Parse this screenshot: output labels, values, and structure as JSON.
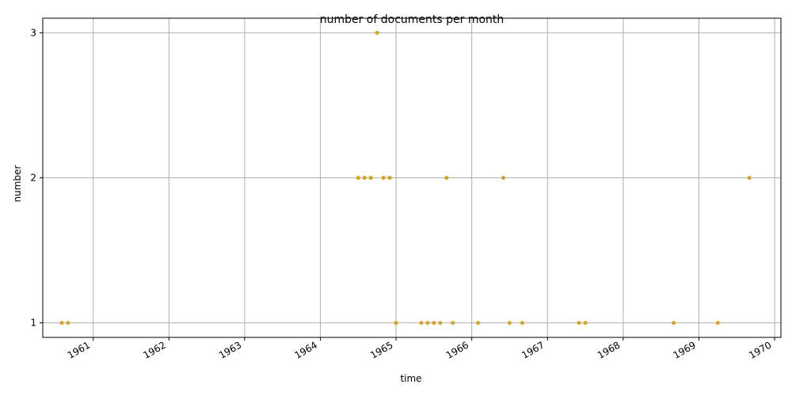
{
  "chart_data": {
    "type": "scatter",
    "title": "number of documents per month",
    "xlabel": "time",
    "ylabel": "number",
    "x_ticks": [
      "1961",
      "1962",
      "1963",
      "1964",
      "1965",
      "1966",
      "1967",
      "1968",
      "1969",
      "1970"
    ],
    "y_ticks": [
      "1",
      "2",
      "3"
    ],
    "xlim": [
      "1960-05-01",
      "1970-02-01"
    ],
    "ylim": [
      0.9,
      3.1
    ],
    "grid": true,
    "marker_color": "#d4a72c",
    "series": [
      {
        "points": [
          {
            "x": "1960-08",
            "y": 1
          },
          {
            "x": "1960-09",
            "y": 1
          },
          {
            "x": "1964-07",
            "y": 2
          },
          {
            "x": "1964-08",
            "y": 2
          },
          {
            "x": "1964-09",
            "y": 2
          },
          {
            "x": "1964-10",
            "y": 3
          },
          {
            "x": "1964-11",
            "y": 2
          },
          {
            "x": "1964-12",
            "y": 2
          },
          {
            "x": "1965-01",
            "y": 1
          },
          {
            "x": "1965-05",
            "y": 1
          },
          {
            "x": "1965-06",
            "y": 1
          },
          {
            "x": "1965-07",
            "y": 1
          },
          {
            "x": "1965-08",
            "y": 1
          },
          {
            "x": "1965-09",
            "y": 2
          },
          {
            "x": "1965-10",
            "y": 1
          },
          {
            "x": "1966-02",
            "y": 1
          },
          {
            "x": "1966-06",
            "y": 2
          },
          {
            "x": "1966-07",
            "y": 1
          },
          {
            "x": "1966-09",
            "y": 1
          },
          {
            "x": "1967-06",
            "y": 1
          },
          {
            "x": "1967-07",
            "y": 1
          },
          {
            "x": "1968-09",
            "y": 1
          },
          {
            "x": "1969-04",
            "y": 1
          },
          {
            "x": "1969-09",
            "y": 2
          }
        ]
      }
    ]
  }
}
